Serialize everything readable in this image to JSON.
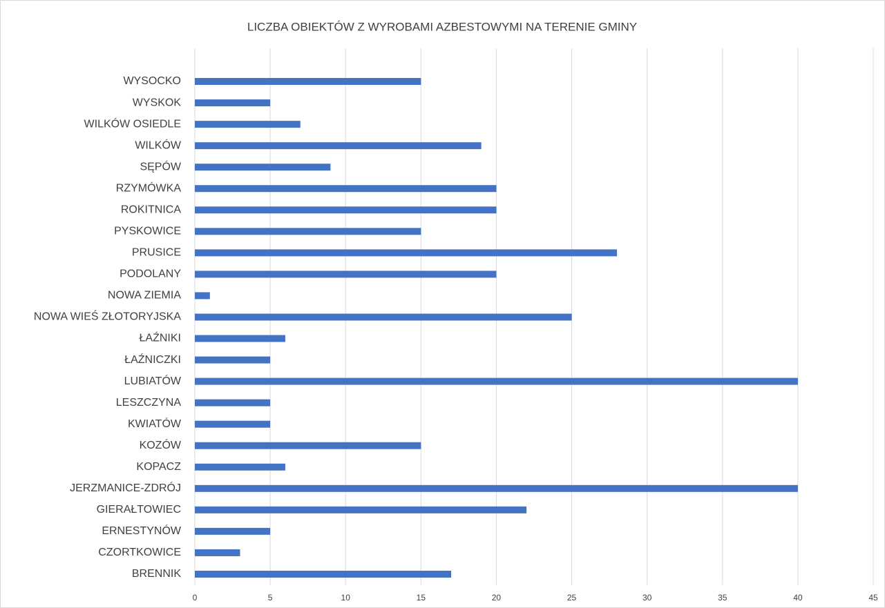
{
  "chart_data": {
    "type": "bar",
    "orientation": "horizontal",
    "title": "LICZBA OBIEKTÓW Z WYROBAMI AZBESTOWYMI NA TERENIE GMINY",
    "categories": [
      "BRENNIK",
      "CZORTKOWICE",
      "ERNESTYNÓW",
      "GIERAŁTOWIEC",
      "JERZMANICE-ZDRÓJ",
      "KOPACZ",
      "KOZÓW",
      "KWIATÓW",
      "LESZCZYNA",
      "LUBIATÓW",
      "ŁAŹNICZKI",
      "ŁAŹNIKI",
      "NOWA WIEŚ ZŁOTORYJSKA",
      "NOWA ZIEMIA",
      "PODOLANY",
      "PRUSICE",
      "PYSKOWICE",
      "ROKITNICA",
      "RZYMÓWKA",
      "SĘPÓW",
      "WILKÓW",
      "WILKÓW OSIEDLE",
      "WYSKOK",
      "WYSOCKO"
    ],
    "values": [
      17,
      3,
      5,
      22,
      40,
      6,
      15,
      5,
      5,
      40,
      5,
      6,
      25,
      1,
      20,
      28,
      15,
      20,
      20,
      9,
      19,
      7,
      5,
      15
    ],
    "color": "#4472c4",
    "xlim": [
      0,
      45
    ],
    "xticks": [
      0,
      5,
      10,
      15,
      20,
      25,
      30,
      35,
      40,
      45
    ],
    "grid": true
  }
}
